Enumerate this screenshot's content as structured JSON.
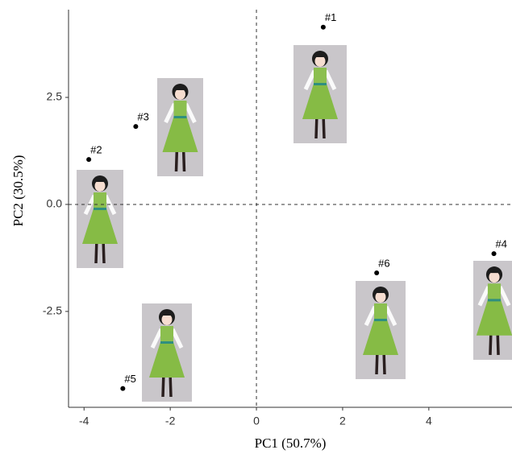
{
  "chart_data": {
    "type": "scatter",
    "x_label": "PC1 (50.7%)",
    "y_label": "PC2 (30.5%)",
    "labels": [
      "#1",
      "#2",
      "#3",
      "#4",
      "#5",
      "#6"
    ],
    "x": [
      1.55,
      -3.89,
      -2.8,
      5.51,
      -3.1,
      2.79
    ],
    "values": [
      4.14,
      1.05,
      1.82,
      -1.15,
      -4.3,
      -1.6
    ],
    "color": "#000000",
    "xlim": [
      -4.36,
      5.93
    ],
    "ylim": [
      -4.74,
      4.55
    ],
    "xticks": [
      -4,
      -2,
      0,
      2,
      4
    ],
    "yticks": [
      -2.5,
      {
        "value": 0,
        "label": "0.0"
      },
      2.5
    ],
    "zero_lines": true
  }
}
